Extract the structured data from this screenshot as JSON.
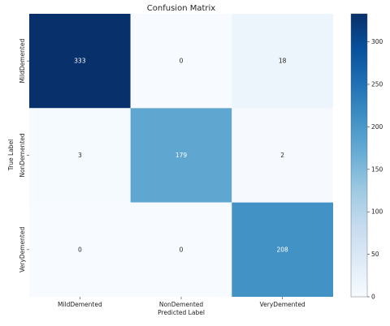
{
  "chart_data": {
    "type": "heatmap",
    "title": "Confusion Matrix",
    "xlabel": "Predicted Label",
    "ylabel": "True Label",
    "x_categories": [
      "MildDemented",
      "NonDemented",
      "VeryDemented"
    ],
    "y_categories": [
      "MildDemented",
      "NonDemented",
      "VeryDemented"
    ],
    "values": [
      [
        333,
        0,
        18
      ],
      [
        3,
        179,
        2
      ],
      [
        0,
        0,
        208
      ]
    ],
    "colormap": "Blues",
    "colorbar": {
      "range": [
        0,
        333
      ],
      "ticks": [
        "0",
        "50",
        "100",
        "150",
        "200",
        "250",
        "300"
      ]
    }
  }
}
